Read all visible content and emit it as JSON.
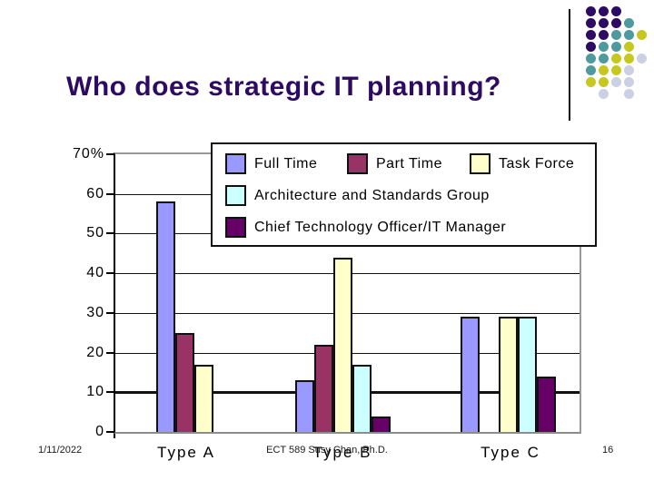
{
  "slide": {
    "title": "Who does strategic IT planning?",
    "footer": {
      "date": "1/11/2022",
      "center": "ECT 589 Susy Chan, Ph.D.",
      "page": "16"
    }
  },
  "decor": {
    "palette": {
      "P": "#2d0b63",
      "T": "#4f9a9e",
      "Y": "#c6c81f",
      "G": "#ccd0e4"
    },
    "dot_grid": [
      "PPP--",
      "PPPT-",
      "PPTTY",
      "PTTY-",
      "TTYYG",
      "TYYG-",
      "YYGG-",
      "-G-G-"
    ]
  },
  "chart_data": {
    "type": "bar",
    "title": "",
    "xlabel": "",
    "ylabel": "",
    "categories": [
      "Type A",
      "Type B",
      "Type C"
    ],
    "series": [
      {
        "name": "Full Time",
        "color": "#9999ff",
        "values": [
          58,
          13,
          29
        ]
      },
      {
        "name": "Part Time",
        "color": "#993366",
        "values": [
          25,
          22,
          0
        ]
      },
      {
        "name": "Task Force",
        "color": "#ffffcc",
        "values": [
          17,
          44,
          29
        ]
      },
      {
        "name": "Architecture and Standards Group",
        "color": "#ccffff",
        "values": [
          0,
          17,
          29
        ]
      },
      {
        "name": "Chief Technology Officer/IT Manager",
        "color": "#660066",
        "values": [
          0,
          4,
          14
        ]
      }
    ],
    "ylim": [
      0,
      70
    ],
    "ytick_values": [
      70,
      60,
      50,
      40,
      30,
      20,
      10,
      0
    ],
    "ytick_labels": [
      "70%",
      "60",
      "50",
      "40",
      "30",
      "20",
      "10",
      "0"
    ],
    "grid": true,
    "legend_position": "inside-top-right"
  }
}
